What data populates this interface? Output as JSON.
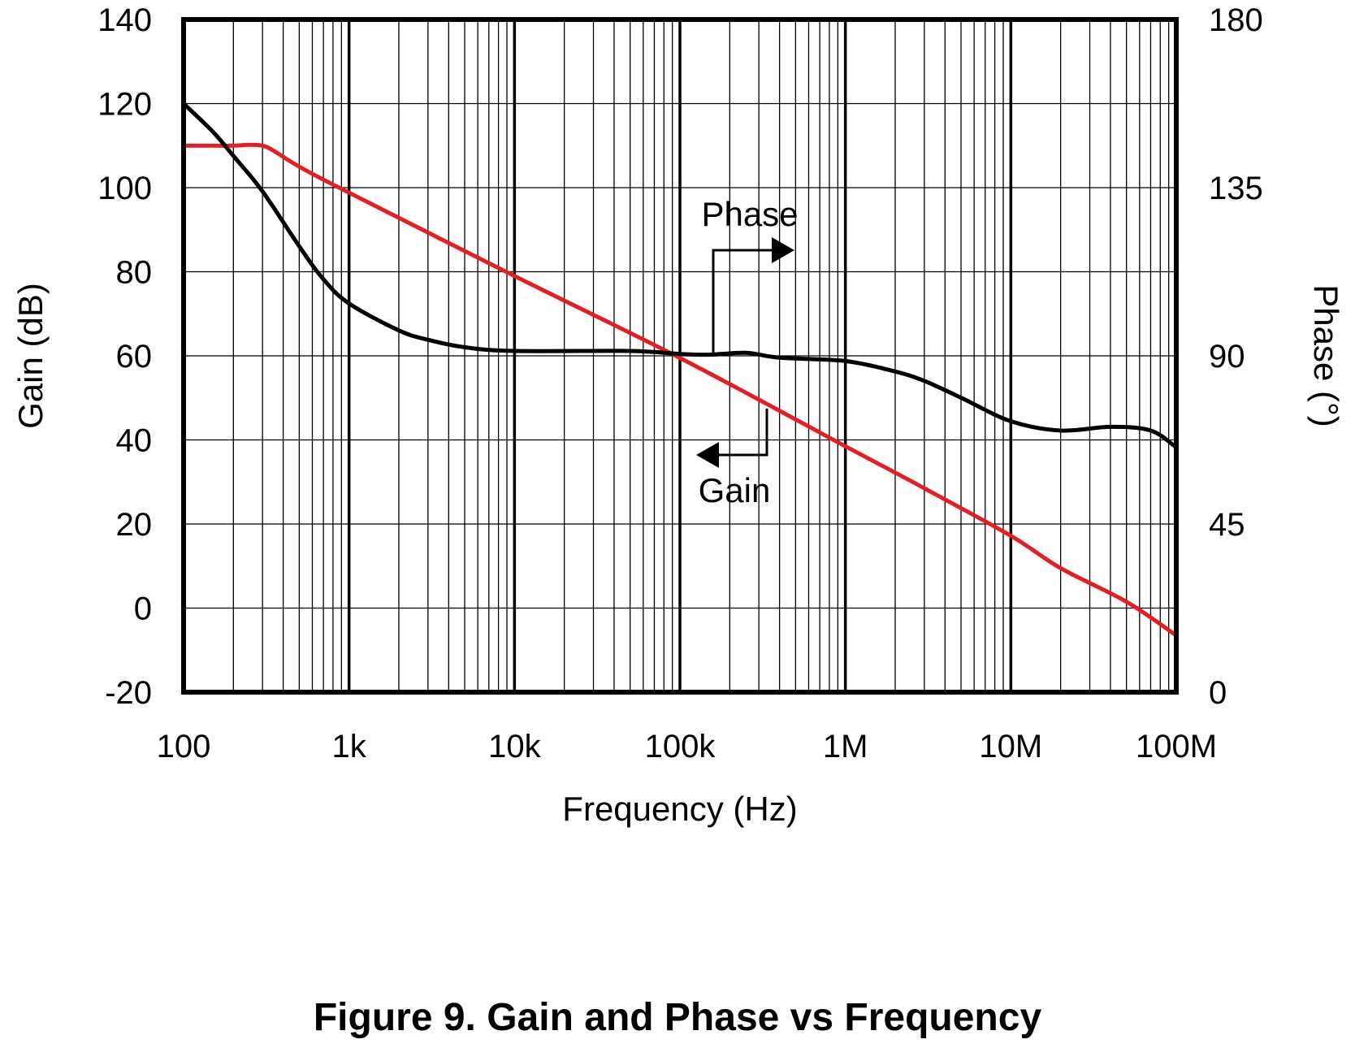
{
  "figure_caption": "Figure 9. Gain and Phase vs Frequency",
  "chart_data": {
    "type": "line",
    "title": "",
    "xlabel": "Frequency (Hz)",
    "ylabel_left": "Gain (dB)",
    "ylabel_right": "Phase (°)",
    "x_scale": "log",
    "xlim": [
      100,
      100000000
    ],
    "ylim_left": [
      -20,
      140
    ],
    "ylim_right": [
      0,
      180
    ],
    "x_ticks": [
      100,
      1000,
      10000,
      100000,
      1000000,
      10000000,
      100000000
    ],
    "x_tick_labels": [
      "100",
      "1k",
      "10k",
      "100k",
      "1M",
      "10M",
      "100M"
    ],
    "y_left_ticks": [
      -20,
      0,
      20,
      40,
      60,
      80,
      100,
      120,
      140
    ],
    "y_left_tick_labels": [
      "-20",
      "0",
      "20",
      "40",
      "60",
      "80",
      "100",
      "120",
      "140"
    ],
    "y_right_ticks": [
      0,
      45,
      90,
      135,
      180
    ],
    "y_right_tick_labels": [
      "0",
      "45",
      "90",
      "135",
      "180"
    ],
    "grid": true,
    "annotations": [
      {
        "text": "Phase",
        "points_to": "right"
      },
      {
        "text": "Gain",
        "points_to": "left"
      }
    ],
    "series": [
      {
        "axis": "left",
        "color": "#e31e24",
        "points": [
          [
            100,
            110
          ],
          [
            150,
            110
          ],
          [
            200,
            110
          ],
          [
            250,
            110.2
          ],
          [
            300,
            110
          ],
          [
            350,
            108.8
          ],
          [
            500,
            105
          ],
          [
            1000,
            98.8
          ],
          [
            10000,
            79
          ],
          [
            100000,
            59.5
          ],
          [
            1000000,
            38.5
          ],
          [
            3000000,
            28.5
          ],
          [
            10000000,
            17.2
          ],
          [
            20000000,
            9.5
          ],
          [
            50000000,
            1.5
          ],
          [
            100000000,
            -6.5
          ]
        ]
      },
      {
        "axis": "right",
        "color": "#000000",
        "points": [
          [
            100,
            157.5
          ],
          [
            150,
            150
          ],
          [
            200,
            143.5
          ],
          [
            300,
            134
          ],
          [
            500,
            119.3
          ],
          [
            700,
            110.5
          ],
          [
            1000,
            104
          ],
          [
            2000,
            96.8
          ],
          [
            3000,
            94.3
          ],
          [
            5000,
            92.3
          ],
          [
            10000,
            91.3
          ],
          [
            50000,
            91.3
          ],
          [
            100000,
            90.5
          ],
          [
            150000,
            90.3
          ],
          [
            250000,
            90.8
          ],
          [
            400000,
            89.5
          ],
          [
            1000000,
            88.6
          ],
          [
            2000000,
            85.8
          ],
          [
            3000000,
            83.3
          ],
          [
            5000000,
            78.8
          ],
          [
            10000000,
            72.5
          ],
          [
            20000000,
            70
          ],
          [
            40000000,
            71
          ],
          [
            70000000,
            70
          ],
          [
            100000000,
            65.5
          ]
        ]
      }
    ]
  }
}
